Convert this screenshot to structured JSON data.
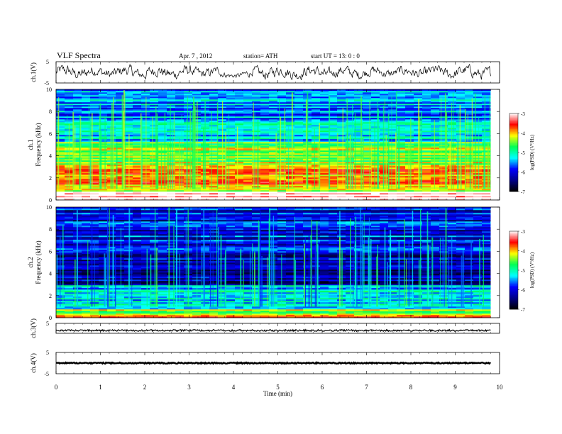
{
  "header": {
    "title": "VLF  Spectra",
    "date": "Apr. 7  , 2012",
    "station": "station= ATH",
    "start": "start  UT  =    13: 0  : 0"
  },
  "colorbar": {
    "label": "log(PSD) (V²/Hz)",
    "ticks": [
      "-3",
      "-4",
      "-5",
      "-6",
      "-7"
    ],
    "colors": [
      "#ffffff",
      "#ff0000",
      "#ffff00",
      "#00ff55",
      "#00ffff",
      "#0000ff",
      "#000088",
      "#000000"
    ]
  },
  "chart_data": [
    {
      "type": "line",
      "panel": "ch1-waveform",
      "ylabel": "ch.1(V)",
      "ylim": [
        -5,
        5
      ],
      "yticks": [
        "5",
        "-5"
      ],
      "x": [
        0,
        0.5,
        1,
        1.5,
        2,
        2.5,
        3,
        3.5,
        3.8,
        4,
        4.2,
        4.5,
        5,
        5.5,
        6,
        6.5,
        7,
        7.5,
        8,
        8.5,
        9,
        9.5,
        9.8
      ],
      "envelope": [
        3.5,
        3.6,
        3.4,
        3.5,
        3.6,
        3.5,
        3.4,
        3.0,
        2.0,
        1.5,
        1.8,
        3.2,
        3.6,
        3.5,
        3.4,
        3.3,
        3.2,
        2.8,
        3.0,
        3.3,
        3.4,
        3.5,
        3.5
      ]
    },
    {
      "type": "heatmap",
      "panel": "ch1-spectrogram",
      "ylabel": "Frequency (kHz)",
      "channel_label": "ch.1",
      "ylim": [
        0,
        10
      ],
      "yticks": [
        "0",
        "2",
        "4",
        "6",
        "8",
        "10"
      ],
      "zlim": [
        -7,
        -3
      ],
      "dominant_bands_khz": [
        {
          "from": 0.0,
          "to": 0.8,
          "logpsd": -3.0
        },
        {
          "from": 0.8,
          "to": 3.2,
          "logpsd": -4.0
        },
        {
          "from": 3.2,
          "to": 5.2,
          "logpsd": -4.5
        },
        {
          "from": 5.2,
          "to": 7.0,
          "logpsd": -5.3
        },
        {
          "from": 7.0,
          "to": 10.0,
          "logpsd": -5.5
        }
      ]
    },
    {
      "type": "heatmap",
      "panel": "ch2-spectrogram",
      "ylabel": "Frequency (kHz)",
      "channel_label": "ch.2",
      "ylim": [
        0,
        10
      ],
      "yticks": [
        "0",
        "2",
        "4",
        "6",
        "8",
        "10"
      ],
      "zlim": [
        -7,
        -3
      ],
      "dominant_bands_khz": [
        {
          "from": 0.0,
          "to": 0.8,
          "logpsd": -4.2
        },
        {
          "from": 0.8,
          "to": 3.0,
          "logpsd": -5.3
        },
        {
          "from": 3.0,
          "to": 6.0,
          "logpsd": -6.2
        },
        {
          "from": 6.0,
          "to": 10.0,
          "logpsd": -6.0
        }
      ]
    },
    {
      "type": "line",
      "panel": "ch3-waveform",
      "ylabel": "ch.3(V)",
      "ylim": [
        -5,
        5
      ],
      "yticks": [
        "5"
      ],
      "baseline": 0,
      "amplitude": 0.3
    },
    {
      "type": "line",
      "panel": "ch4-waveform",
      "ylabel": "ch.4(V)",
      "ylim": [
        -5,
        5
      ],
      "yticks": [
        "5",
        "-5"
      ],
      "baseline": 0,
      "amplitude": 0.2
    }
  ],
  "xaxis": {
    "label": "Time  (min)",
    "range": [
      0,
      10
    ],
    "data_end": 9.8,
    "ticks": [
      "0",
      "1",
      "2",
      "3",
      "4",
      "5",
      "6",
      "7",
      "8",
      "9",
      "10"
    ]
  }
}
